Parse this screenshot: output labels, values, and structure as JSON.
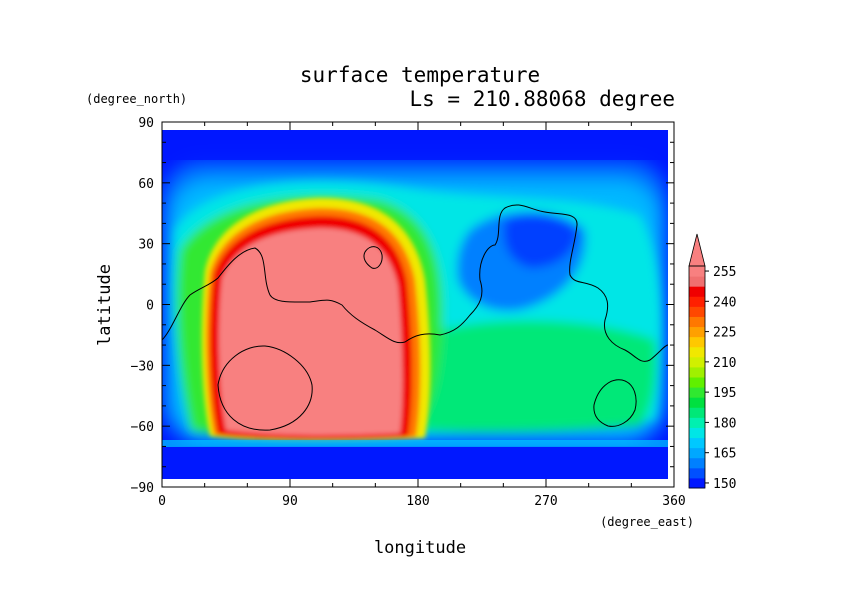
{
  "chart_data": {
    "type": "heatmap",
    "title": "surface temperature",
    "subtitle": "Ls = 210.88068 degree",
    "xlabel": "longitude",
    "ylabel": "latitude",
    "x_units": "(degree_east)",
    "y_units": "(degree_north)",
    "xlim": [
      0,
      360
    ],
    "ylim": [
      -90,
      90
    ],
    "data_lat_extent": [
      -85,
      85
    ],
    "x_ticks": [
      "0",
      "90",
      "180",
      "270",
      "360"
    ],
    "y_ticks": [
      "90",
      "60",
      "30",
      "0",
      "−30",
      "−60",
      "−90"
    ],
    "colorbar": {
      "levels": [
        150,
        155,
        160,
        165,
        170,
        175,
        180,
        185,
        190,
        195,
        200,
        205,
        210,
        215,
        220,
        225,
        230,
        235,
        240,
        245,
        250,
        255
      ],
      "tick_labels": [
        "150",
        "165",
        "180",
        "195",
        "210",
        "225",
        "240",
        "255"
      ],
      "colors": [
        "#0018ff",
        "#0050ff",
        "#0080ff",
        "#00a8ff",
        "#00c8ff",
        "#00e6e6",
        "#00f0b0",
        "#00e878",
        "#00e040",
        "#30e830",
        "#60f000",
        "#a0f000",
        "#d0f000",
        "#f0e800",
        "#ffc800",
        "#ffa000",
        "#ff7800",
        "#ff4800",
        "#ff2000",
        "#f00000",
        "#f07070",
        "#f88080"
      ],
      "extend": "max"
    },
    "features": {
      "warm_region": {
        "lon_range": [
          35,
          175
        ],
        "lat_range": [
          -63,
          35
        ],
        "max_level": "above 255"
      },
      "cold_caps": {
        "north_above_lat": 65,
        "south_below_lat": -66,
        "level": "below 150"
      },
      "mid_band": {
        "lon_range": [
          180,
          360
        ],
        "lat_range": [
          -60,
          40
        ],
        "range": [
          165,
          205
        ]
      }
    },
    "grid": false,
    "legend": "colorbar-right"
  }
}
